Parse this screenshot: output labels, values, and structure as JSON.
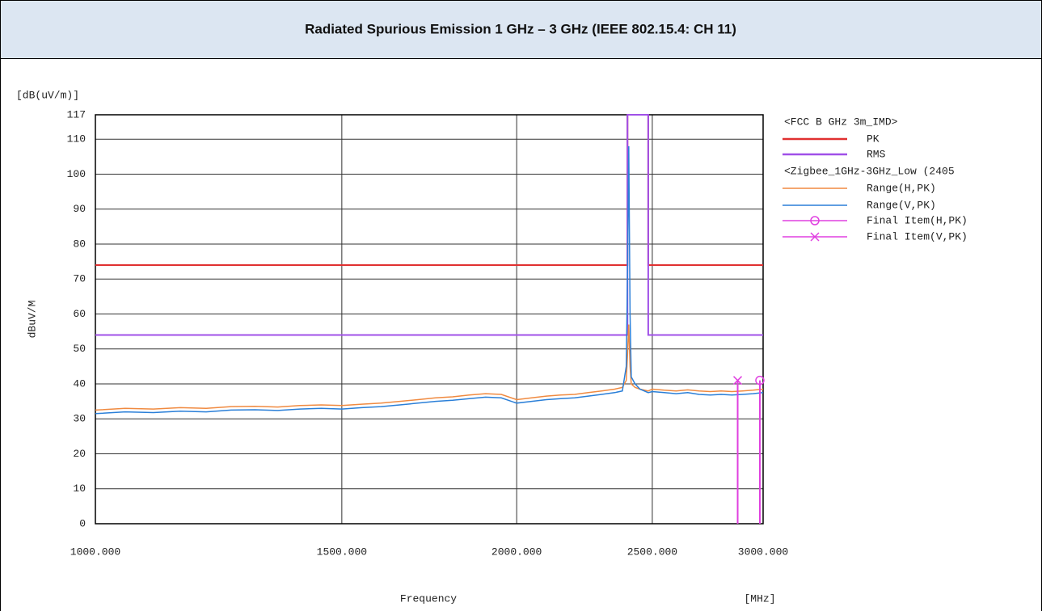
{
  "chart_data": {
    "type": "line",
    "title": "Radiated Spurious Emission 1 GHz – 3 GHz (IEEE 802.15.4: CH 11)",
    "y_unit_label": "[dB(uV/m)]",
    "ylabel": "dBuV/M",
    "xlabel": "Frequency",
    "x_unit_label": "[MHz]",
    "legend_headers": [
      "<FCC B GHz 3m_IMD>",
      "<Zigbee_1GHz-3GHz_Low (2405"
    ],
    "xscale": "log",
    "grid": true,
    "xlim": [
      1000,
      3000
    ],
    "xticks": [
      {
        "value": 1000,
        "label": "1000.000"
      },
      {
        "value": 1500,
        "label": "1500.000"
      },
      {
        "value": 2000,
        "label": "2000.000"
      },
      {
        "value": 2500,
        "label": "2500.000"
      },
      {
        "value": 3000,
        "label": "3000.000"
      }
    ],
    "ylim": [
      0,
      117
    ],
    "yticks": [
      0,
      10,
      20,
      30,
      40,
      50,
      60,
      70,
      80,
      90,
      100,
      110,
      117
    ],
    "x": [
      1000,
      1050,
      1100,
      1150,
      1200,
      1250,
      1300,
      1350,
      1400,
      1450,
      1500,
      1550,
      1600,
      1650,
      1700,
      1750,
      1800,
      1850,
      1900,
      1950,
      2000,
      2050,
      2100,
      2150,
      2200,
      2250,
      2300,
      2350,
      2380,
      2395,
      2400,
      2405,
      2410,
      2415,
      2430,
      2450,
      2483.5,
      2500,
      2550,
      2600,
      2650,
      2700,
      2750,
      2800,
      2850,
      2900,
      2950,
      3000
    ],
    "series": [
      {
        "name": "PK",
        "color": "#e03030",
        "x": [
          1000,
          2400,
          2400,
          2483.5,
          2483.5,
          3000
        ],
        "values": [
          74,
          74,
          117,
          117,
          74,
          74
        ]
      },
      {
        "name": "RMS",
        "color": "#a050e8",
        "x": [
          1000,
          2400,
          2400,
          2483.5,
          2483.5,
          3000
        ],
        "values": [
          54,
          54,
          117,
          117,
          54,
          54
        ]
      },
      {
        "name": "Range(H,PK)",
        "color": "#f08a40",
        "values": [
          32.5,
          33,
          32.8,
          33.2,
          33,
          33.5,
          33.6,
          33.4,
          33.8,
          34,
          33.8,
          34.2,
          34.5,
          35,
          35.5,
          36,
          36.3,
          36.8,
          37.2,
          37,
          35.5,
          36,
          36.5,
          36.8,
          37,
          37.5,
          38,
          38.5,
          39,
          41,
          48,
          57,
          45,
          40,
          39,
          38.5,
          38,
          38.5,
          38.2,
          38,
          38.3,
          38,
          37.8,
          38,
          37.8,
          38,
          38.2,
          38.5
        ]
      },
      {
        "name": "Range(V,PK)",
        "color": "#2a7fd8",
        "values": [
          31.5,
          32,
          31.8,
          32.2,
          32,
          32.5,
          32.6,
          32.4,
          32.8,
          33,
          32.8,
          33.2,
          33.5,
          34,
          34.5,
          35,
          35.3,
          35.8,
          36.2,
          36,
          34.5,
          35,
          35.5,
          35.8,
          36,
          36.5,
          37,
          37.5,
          38,
          45,
          70,
          108,
          60,
          42,
          40,
          38.5,
          37.5,
          37.8,
          37.5,
          37.2,
          37.5,
          37,
          36.8,
          37,
          36.8,
          37,
          37.2,
          37.5
        ]
      },
      {
        "name": "Final Item(H,PK)",
        "color": "#e040e0",
        "marker": "circle",
        "x": [
          2984
        ],
        "values": [
          41
        ]
      },
      {
        "name": "Final Item(V,PK)",
        "color": "#e040e0",
        "marker": "cross",
        "x": [
          2877
        ],
        "values": [
          41
        ]
      }
    ]
  }
}
